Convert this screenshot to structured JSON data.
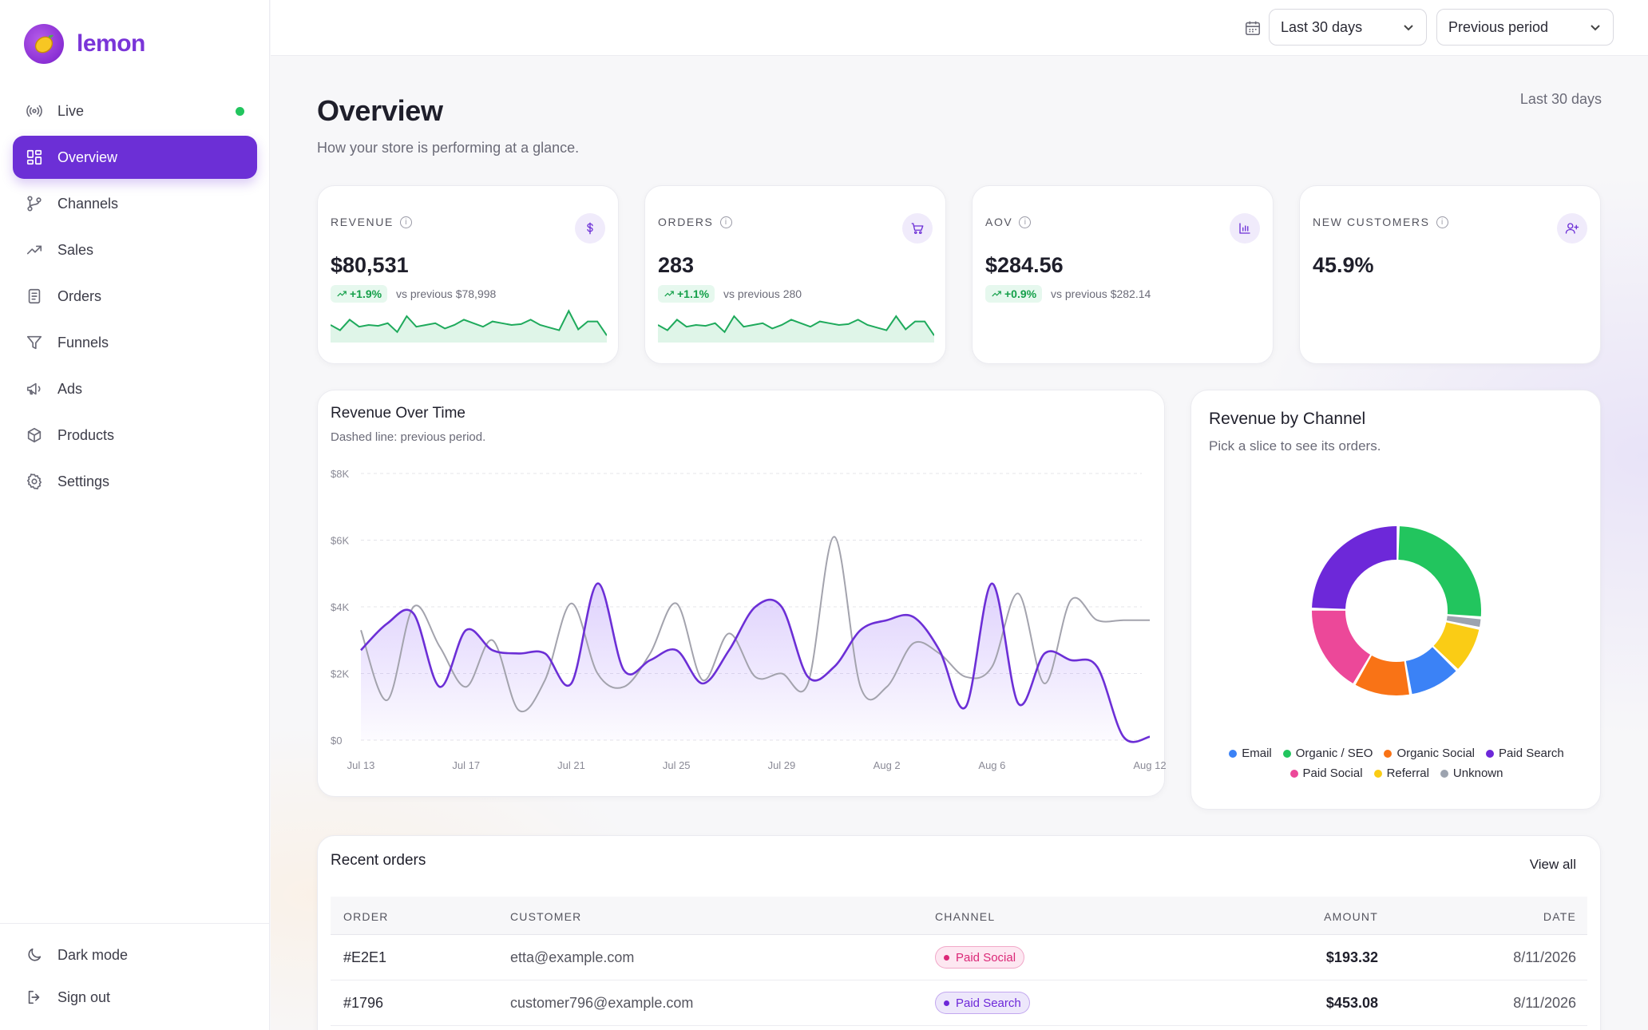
{
  "brand": {
    "name": "lemon"
  },
  "sidebar": {
    "items": [
      {
        "key": "live",
        "label": "Live",
        "icon": "broadcast-icon"
      },
      {
        "key": "overview",
        "label": "Overview",
        "icon": "grid-icon"
      },
      {
        "key": "channels",
        "label": "Channels",
        "icon": "git-branch-icon"
      },
      {
        "key": "sales",
        "label": "Sales",
        "icon": "trending-up-icon"
      },
      {
        "key": "orders",
        "label": "Orders",
        "icon": "document-icon"
      },
      {
        "key": "funnels",
        "label": "Funnels",
        "icon": "filter-icon"
      },
      {
        "key": "ads",
        "label": "Ads",
        "icon": "megaphone-icon"
      },
      {
        "key": "products",
        "label": "Products",
        "icon": "box-icon"
      },
      {
        "key": "settings",
        "label": "Settings",
        "icon": "gear-icon"
      }
    ],
    "active": "Overview",
    "live_color": "#22c55e",
    "bottom": {
      "dark_mode": "Dark mode",
      "sign_out": "Sign out"
    }
  },
  "topbar": {
    "range": "Last 30 days",
    "compare": "Previous period"
  },
  "page": {
    "title": "Overview",
    "subtitle": "How your store is performing at a glance.",
    "range_note": "Last 30 days"
  },
  "kpis": [
    {
      "label": "REVENUE",
      "value": "$80,531",
      "delta": "+1.9%",
      "previous": "vs previous $78,998",
      "icon": "dollar-icon"
    },
    {
      "label": "ORDERS",
      "value": "283",
      "delta": "+1.1%",
      "previous": "vs previous 280",
      "icon": "cart-icon"
    },
    {
      "label": "AOV",
      "value": "$284.56",
      "delta": "+0.9%",
      "previous": "vs previous $282.14",
      "icon": "bar-chart-icon"
    },
    {
      "label": "NEW CUSTOMERS",
      "value": "45.9%",
      "icon": "user-plus-icon"
    }
  ],
  "colors": {
    "accent": "#6c2fd6",
    "positive": "#15a04a",
    "previous_line": "#a3a3ad"
  },
  "chart_data": [
    {
      "type": "line",
      "title": "Revenue Over Time",
      "subtitle": "Dashed line: previous period.",
      "x_ticks": [
        "Jul 13",
        "Jul 17",
        "Jul 21",
        "Jul 25",
        "Jul 29",
        "Aug 2",
        "Aug 6",
        "Aug 12"
      ],
      "y_ticks": [
        "$8K",
        "$6K",
        "$4K",
        "$2K",
        "$0"
      ],
      "ylim": [
        0,
        8000
      ],
      "x_count": 31,
      "series": [
        {
          "color": "#6c2fd6",
          "fill": true,
          "values": [
            2700,
            3500,
            3800,
            1600,
            3300,
            2700,
            2600,
            2600,
            1700,
            4700,
            2100,
            2400,
            2700,
            1700,
            2700,
            4000,
            4000,
            1900,
            2200,
            3300,
            3600,
            3700,
            2700,
            1000,
            4700,
            1100,
            2600,
            2400,
            2200,
            100,
            100
          ]
        },
        {
          "color": "#a3a3ad",
          "dashed": false,
          "values": [
            3300,
            1200,
            4000,
            2800,
            1600,
            3000,
            900,
            1800,
            4100,
            2000,
            1600,
            2600,
            4100,
            1800,
            3200,
            1900,
            2000,
            1700,
            6100,
            1600,
            1600,
            2900,
            2600,
            1900,
            2200,
            4400,
            1700,
            4200,
            3600,
            3600,
            3600
          ]
        }
      ]
    },
    {
      "type": "pie",
      "title": "Revenue by Channel",
      "subtitle": "Pick a slice to see its orders.",
      "hole": true,
      "slices": [
        {
          "label": "Organic / SEO",
          "value": 26,
          "color": "#22c55e"
        },
        {
          "label": "Unknown",
          "value": 2,
          "color": "#9ca3af"
        },
        {
          "label": "Referral",
          "value": 9,
          "color": "#facc15"
        },
        {
          "label": "Email",
          "value": 10,
          "color": "#3b82f6"
        },
        {
          "label": "Organic Social",
          "value": 11,
          "color": "#f97316"
        },
        {
          "label": "Paid Social",
          "value": 17,
          "color": "#ec4899"
        },
        {
          "label": "Paid Search",
          "value": 25,
          "color": "#6d28d9"
        }
      ],
      "legend": [
        {
          "label": "Email",
          "color": "#3b82f6"
        },
        {
          "label": "Organic / SEO",
          "color": "#22c55e"
        },
        {
          "label": "Organic Social",
          "color": "#f97316"
        },
        {
          "label": "Paid Search",
          "color": "#6d28d9"
        },
        {
          "label": "Paid Social",
          "color": "#ec4899"
        },
        {
          "label": "Referral",
          "color": "#facc15"
        },
        {
          "label": "Unknown",
          "color": "#9ca3af"
        }
      ]
    }
  ],
  "sparklines": [
    [
      20,
      14,
      26,
      18,
      20,
      19,
      22,
      12,
      30,
      18,
      20,
      22,
      16,
      20,
      26,
      22,
      18,
      24,
      22,
      20,
      21,
      26,
      20,
      17,
      14,
      36,
      15,
      24,
      24,
      8
    ],
    [
      20,
      14,
      26,
      18,
      20,
      19,
      22,
      12,
      30,
      18,
      20,
      22,
      16,
      20,
      26,
      22,
      18,
      24,
      22,
      20,
      21,
      26,
      20,
      17,
      14,
      30,
      15,
      24,
      24,
      8
    ],
    [],
    []
  ],
  "orders": {
    "title": "Recent orders",
    "view_all": "View all",
    "columns": [
      "ORDER",
      "CUSTOMER",
      "CHANNEL",
      "AMOUNT",
      "DATE"
    ],
    "rows": [
      {
        "order": "#E2E1",
        "customer": "etta@example.com",
        "channel": "Paid Social",
        "channel_color": "#db2777",
        "channel_bg": "#fde7f1",
        "amount": "$193.32",
        "date": "8/11/2026"
      },
      {
        "order": "#1796",
        "customer": "customer796@example.com",
        "channel": "Paid Search",
        "channel_color": "#6d28d9",
        "channel_bg": "#ede7fb",
        "amount": "$453.08",
        "date": "8/11/2026"
      }
    ]
  }
}
